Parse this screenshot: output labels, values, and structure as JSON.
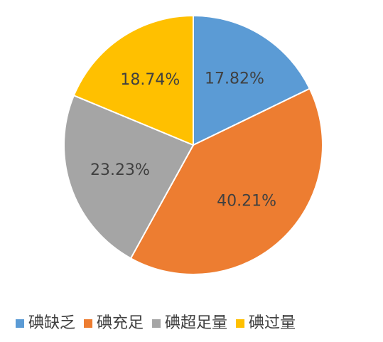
{
  "chart_data": {
    "type": "pie",
    "categories": [
      "碘缺乏",
      "碘充足",
      "碘超足量",
      "碘过量"
    ],
    "values": [
      17.82,
      40.21,
      23.23,
      18.74
    ],
    "value_labels": [
      "17.82%",
      "40.21%",
      "23.23%",
      "18.74%"
    ],
    "colors": [
      "#5b9bd5",
      "#ed7d31",
      "#a5a5a5",
      "#ffc000"
    ],
    "legend": "bottom"
  }
}
